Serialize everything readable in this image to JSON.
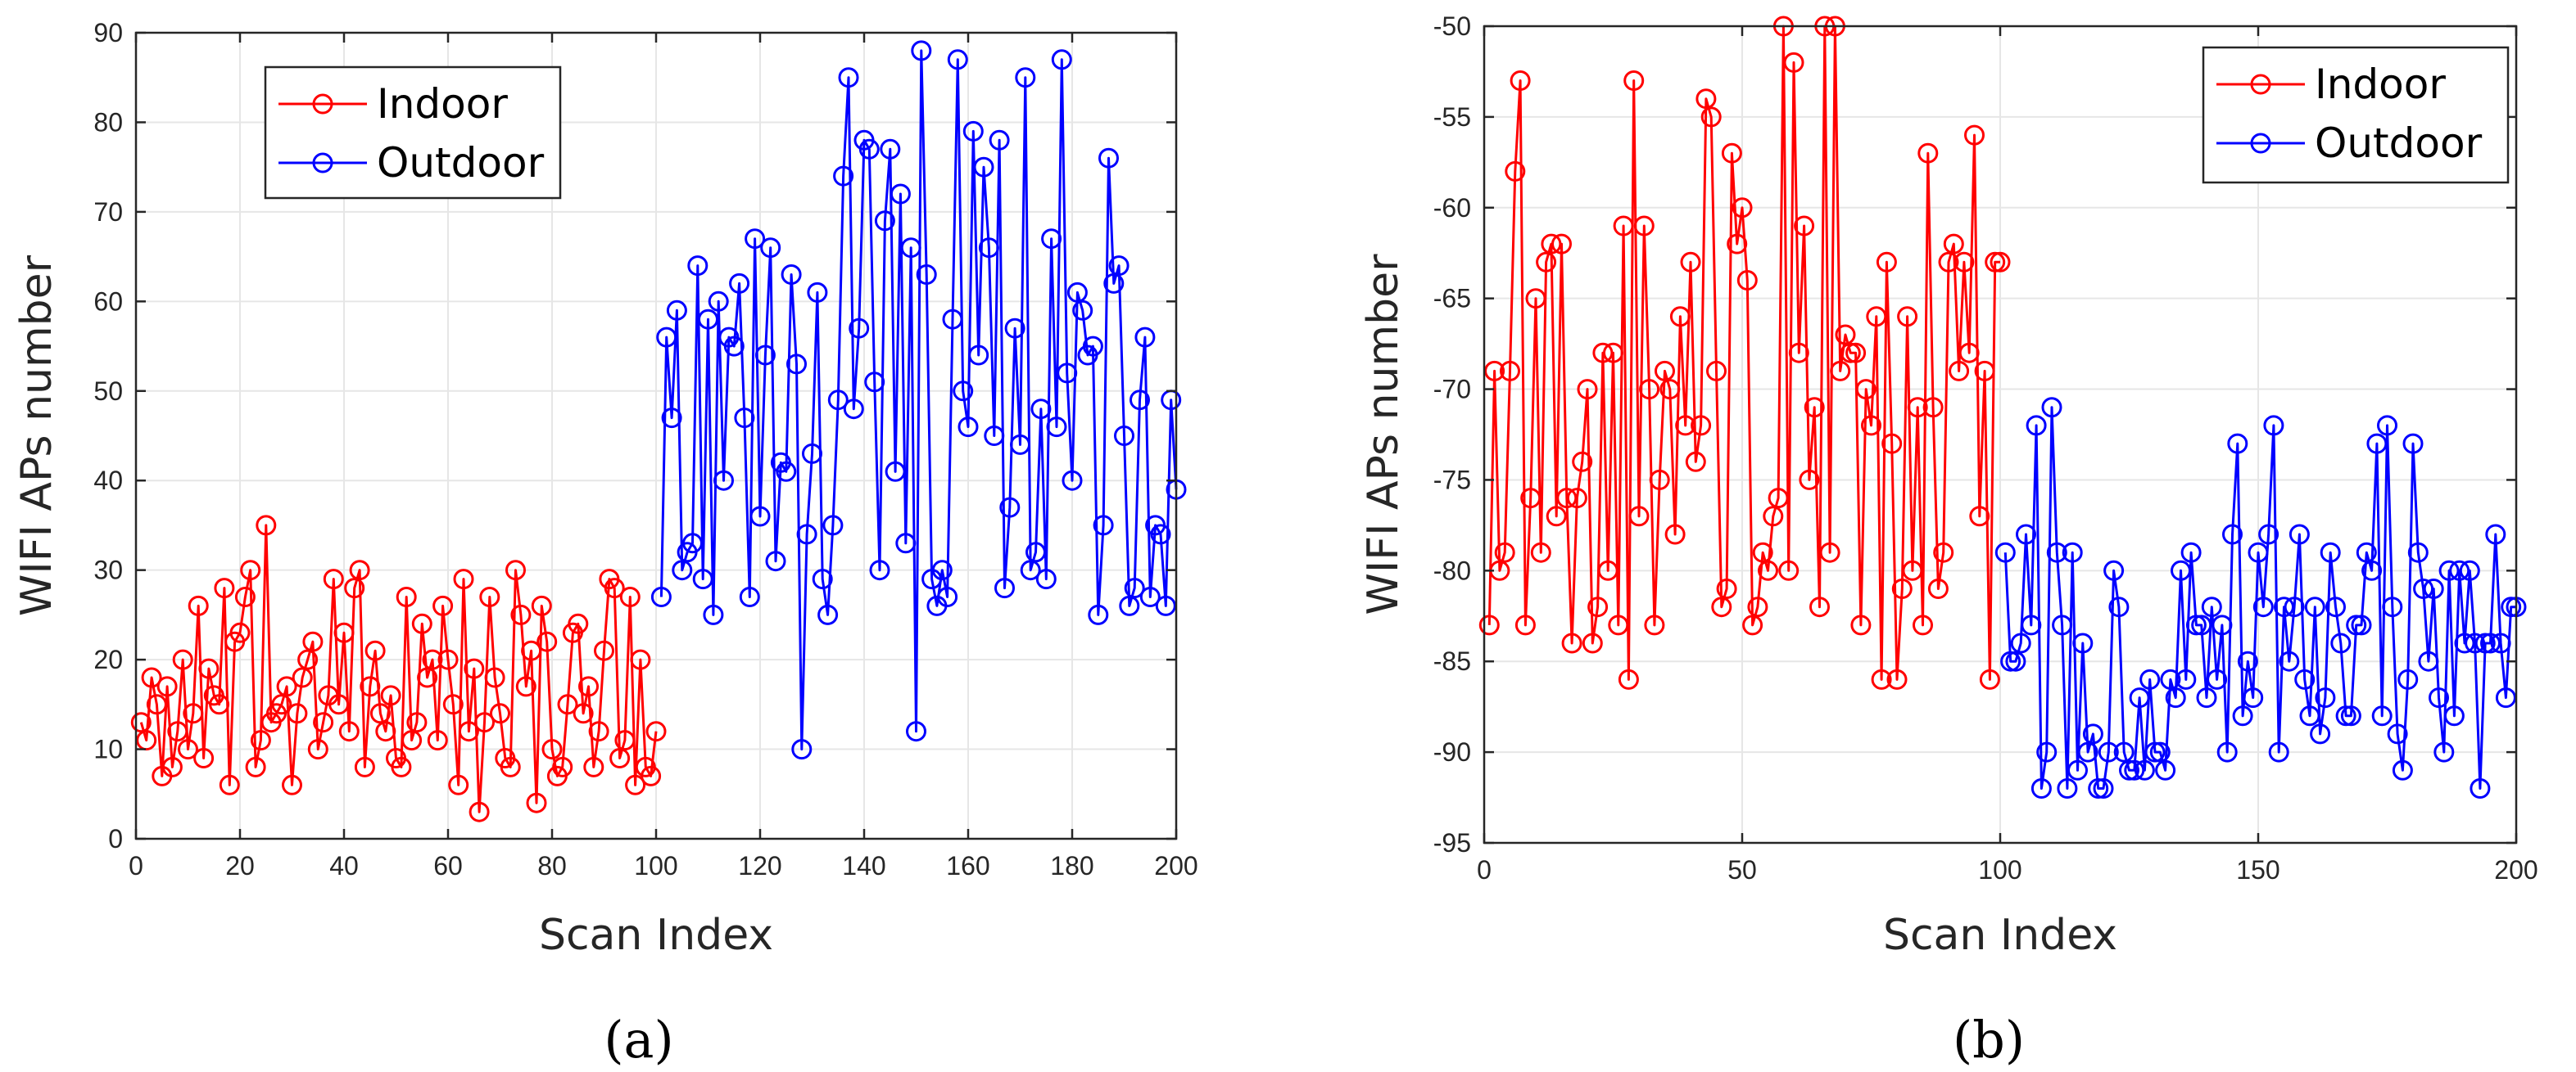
{
  "captions": [
    "(a)",
    "(b)"
  ],
  "colors": {
    "indoor": "#ff0000",
    "outdoor": "#0000ff",
    "grid": "#e6e6e6",
    "axis": "#262626"
  },
  "chart_data": [
    {
      "type": "line",
      "title": "",
      "xlabel": "Scan Index",
      "ylabel": "WIFI APs number",
      "xlim": [
        0,
        200
      ],
      "ylim": [
        0,
        90
      ],
      "xticks": [
        0,
        20,
        40,
        60,
        80,
        100,
        120,
        140,
        160,
        180,
        200
      ],
      "yticks": [
        0,
        10,
        20,
        30,
        40,
        50,
        60,
        70,
        80,
        90
      ],
      "grid": true,
      "legend_position": "top-left",
      "marker": "circle",
      "series": [
        {
          "name": "Indoor",
          "color": "#ff0000",
          "x_start": 1,
          "values": [
            13,
            11,
            18,
            15,
            7,
            17,
            8,
            12,
            20,
            10,
            14,
            26,
            9,
            19,
            16,
            15,
            28,
            6,
            22,
            23,
            27,
            30,
            8,
            11,
            35,
            13,
            14,
            15,
            17,
            6,
            14,
            18,
            20,
            22,
            10,
            13,
            16,
            29,
            15,
            23,
            12,
            28,
            30,
            8,
            17,
            21,
            14,
            12,
            16,
            9,
            8,
            27,
            11,
            13,
            24,
            18,
            20,
            11,
            26,
            20,
            15,
            6,
            29,
            12,
            19,
            3,
            13,
            27,
            18,
            14,
            9,
            8,
            30,
            25,
            17,
            21,
            4,
            26,
            22,
            10,
            7,
            8,
            15,
            23,
            24,
            14,
            17,
            8,
            12,
            21,
            29,
            28,
            9,
            11,
            27,
            6,
            20,
            8,
            7,
            12
          ]
        },
        {
          "name": "Outdoor",
          "color": "#0000ff",
          "x_start": 101,
          "values": [
            27,
            56,
            47,
            59,
            30,
            32,
            33,
            64,
            29,
            58,
            25,
            60,
            40,
            56,
            55,
            62,
            47,
            27,
            67,
            36,
            54,
            66,
            31,
            42,
            41,
            63,
            53,
            10,
            34,
            43,
            61,
            29,
            25,
            35,
            49,
            74,
            85,
            48,
            57,
            78,
            77,
            51,
            30,
            69,
            77,
            41,
            72,
            33,
            66,
            12,
            88,
            63,
            29,
            26,
            30,
            27,
            58,
            87,
            50,
            46,
            79,
            54,
            75,
            66,
            45,
            78,
            28,
            37,
            57,
            44,
            85,
            30,
            32,
            48,
            29,
            67,
            46,
            87,
            52,
            40,
            61,
            59,
            54,
            55,
            25,
            35,
            76,
            62,
            64,
            45,
            26,
            28,
            49,
            56,
            27,
            35,
            34,
            26,
            49,
            39
          ]
        }
      ]
    },
    {
      "type": "line",
      "title": "",
      "xlabel": "Scan Index",
      "ylabel": "WIFI APs number",
      "xlim": [
        0,
        200
      ],
      "ylim": [
        -95,
        -50
      ],
      "xticks": [
        0,
        50,
        100,
        150,
        200
      ],
      "yticks": [
        -95,
        -90,
        -85,
        -80,
        -75,
        -70,
        -65,
        -60,
        -55,
        -50
      ],
      "grid": true,
      "legend_position": "top-right",
      "marker": "circle",
      "series": [
        {
          "name": "Indoor",
          "color": "#ff0000",
          "x_start": 1,
          "values": [
            -83,
            -69,
            -80,
            -79,
            -69,
            -58,
            -53,
            -83,
            -76,
            -65,
            -79,
            -63,
            -62,
            -77,
            -62,
            -76,
            -84,
            -76,
            -74,
            -70,
            -84,
            -82,
            -68,
            -80,
            -68,
            -83,
            -61,
            -86,
            -53,
            -77,
            -61,
            -70,
            -83,
            -75,
            -69,
            -70,
            -78,
            -66,
            -72,
            -63,
            -74,
            -72,
            -54,
            -55,
            -69,
            -82,
            -81,
            -57,
            -62,
            -60,
            -64,
            -83,
            -82,
            -79,
            -80,
            -77,
            -76,
            -50,
            -80,
            -52,
            -68,
            -61,
            -75,
            -71,
            -82,
            -50,
            -79,
            -50,
            -69,
            -67,
            -68,
            -68,
            -83,
            -70,
            -72,
            -66,
            -86,
            -63,
            -73,
            -86,
            -81,
            -66,
            -80,
            -71,
            -83,
            -57,
            -71,
            -81,
            -79,
            -63,
            -62,
            -69,
            -63,
            -68,
            -56,
            -77,
            -69,
            -86,
            -63,
            -63
          ]
        },
        {
          "name": "Outdoor",
          "color": "#0000ff",
          "x_start": 101,
          "values": [
            -79,
            -85,
            -85,
            -84,
            -78,
            -83,
            -72,
            -92,
            -90,
            -71,
            -79,
            -83,
            -92,
            -79,
            -91,
            -84,
            -90,
            -89,
            -92,
            -92,
            -90,
            -80,
            -82,
            -90,
            -91,
            -91,
            -87,
            -91,
            -86,
            -90,
            -90,
            -91,
            -86,
            -87,
            -80,
            -86,
            -79,
            -83,
            -83,
            -87,
            -82,
            -86,
            -83,
            -90,
            -78,
            -73,
            -88,
            -85,
            -87,
            -79,
            -82,
            -78,
            -72,
            -90,
            -82,
            -85,
            -82,
            -78,
            -86,
            -88,
            -82,
            -89,
            -87,
            -79,
            -82,
            -84,
            -88,
            -88,
            -83,
            -83,
            -79,
            -80,
            -73,
            -88,
            -72,
            -82,
            -89,
            -91,
            -86,
            -73,
            -79,
            -81,
            -85,
            -81,
            -87,
            -90,
            -80,
            -88,
            -80,
            -84,
            -80,
            -84,
            -92,
            -84,
            -84,
            -78,
            -84,
            -87,
            -82,
            -82
          ]
        }
      ]
    }
  ]
}
